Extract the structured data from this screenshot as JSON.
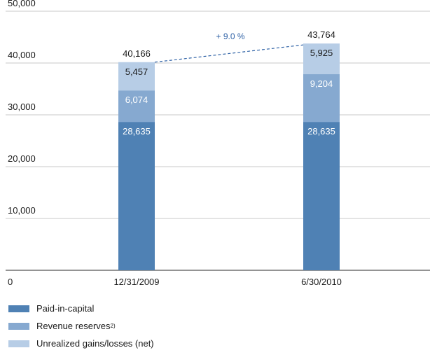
{
  "chart_data": {
    "type": "bar",
    "stacked": true,
    "categories": [
      "12/31/2009",
      "6/30/2010"
    ],
    "series": [
      {
        "name": "Paid-in-capital",
        "values": [
          28635,
          28635
        ],
        "color": "#4f81b4",
        "value_labels": [
          "28,635",
          "28,635"
        ]
      },
      {
        "name": "Revenue reserves",
        "name_sup": "2)",
        "values": [
          6074,
          9204
        ],
        "color": "#86a9d0",
        "value_labels": [
          "6,074",
          "9,204"
        ]
      },
      {
        "name": "Unrealized gains/losses (net)",
        "values": [
          5457,
          5925
        ],
        "color": "#b7cde6",
        "value_labels": [
          "5,457",
          "5,925"
        ]
      }
    ],
    "totals": [
      40166,
      43764
    ],
    "total_labels": [
      "40,166",
      "43,764"
    ],
    "change_annotation": "+ 9.0 %",
    "ylim": [
      0,
      50000
    ],
    "y_ticks": [
      0,
      10000,
      20000,
      30000,
      40000,
      50000
    ],
    "y_tick_labels": [
      "0",
      "10,000",
      "20,000",
      "30,000",
      "40,000",
      "50,000"
    ],
    "grid": true,
    "legend_position": "bottom-left",
    "title": "",
    "xlabel": "",
    "ylabel": ""
  }
}
